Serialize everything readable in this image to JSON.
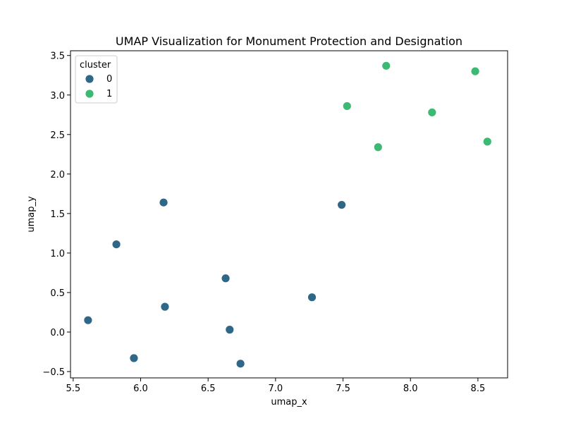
{
  "chart_data": {
    "type": "scatter",
    "title": "UMAP Visualization for Monument Protection and Designation",
    "xlabel": "umap_x",
    "ylabel": "umap_y",
    "xlim": [
      5.48,
      8.72
    ],
    "ylim": [
      -0.58,
      3.56
    ],
    "xticks": [
      5.5,
      6.0,
      6.5,
      7.0,
      7.5,
      8.0,
      8.5
    ],
    "xtick_labels": [
      "5.5",
      "6.0",
      "6.5",
      "7.0",
      "7.5",
      "8.0",
      "8.5"
    ],
    "yticks": [
      -0.5,
      0.0,
      0.5,
      1.0,
      1.5,
      2.0,
      2.5,
      3.0,
      3.5
    ],
    "ytick_labels": [
      "−0.5",
      "0.0",
      "0.5",
      "1.0",
      "1.5",
      "2.0",
      "2.5",
      "3.0",
      "3.5"
    ],
    "grid": false,
    "legend": {
      "title": "cluster",
      "placement": "top-left"
    },
    "series": [
      {
        "name": "0",
        "color": "#2e6788",
        "points": [
          {
            "x": 5.61,
            "y": 0.15
          },
          {
            "x": 5.82,
            "y": 1.11
          },
          {
            "x": 5.95,
            "y": -0.33
          },
          {
            "x": 6.17,
            "y": 1.64
          },
          {
            "x": 6.18,
            "y": 0.32
          },
          {
            "x": 6.63,
            "y": 0.68
          },
          {
            "x": 6.66,
            "y": 0.03
          },
          {
            "x": 6.74,
            "y": -0.4
          },
          {
            "x": 7.27,
            "y": 0.44
          },
          {
            "x": 7.49,
            "y": 1.61
          }
        ]
      },
      {
        "name": "1",
        "color": "#3cba74",
        "points": [
          {
            "x": 7.53,
            "y": 2.86
          },
          {
            "x": 7.76,
            "y": 2.34
          },
          {
            "x": 7.82,
            "y": 3.37
          },
          {
            "x": 8.16,
            "y": 2.78
          },
          {
            "x": 8.48,
            "y": 3.3
          },
          {
            "x": 8.57,
            "y": 2.41
          }
        ]
      }
    ]
  }
}
